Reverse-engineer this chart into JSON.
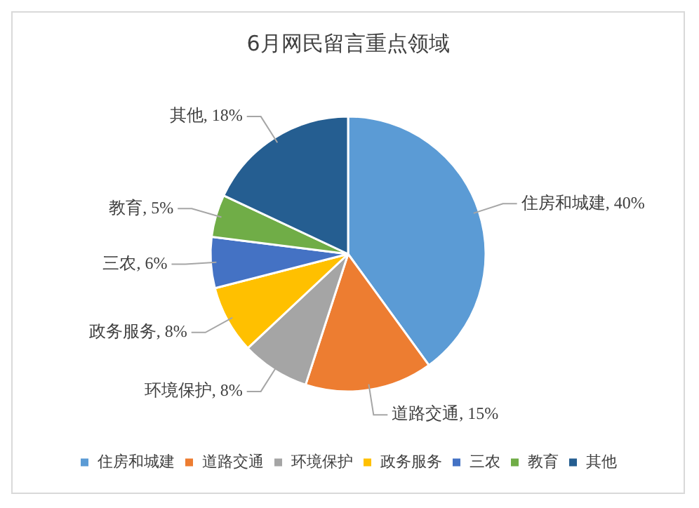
{
  "chart_data": {
    "type": "pie",
    "title": "6月网民留言重点领域",
    "categories": [
      "住房和城建",
      "道路交通",
      "环境保护",
      "政务服务",
      "三农",
      "教育",
      "其他"
    ],
    "values": [
      40,
      15,
      8,
      8,
      6,
      5,
      18
    ],
    "colors": [
      "#5b9bd5",
      "#ed7d31",
      "#a5a5a5",
      "#ffc000",
      "#4472c4",
      "#70ad47",
      "#255e91"
    ],
    "value_labels": [
      "住房和城建, 40%",
      "道路交通, 15%",
      "环境保护, 8%",
      "政务服务, 8%",
      "三农, 6%",
      "教育, 5%",
      "其他, 18%"
    ],
    "legend": "bottom"
  }
}
